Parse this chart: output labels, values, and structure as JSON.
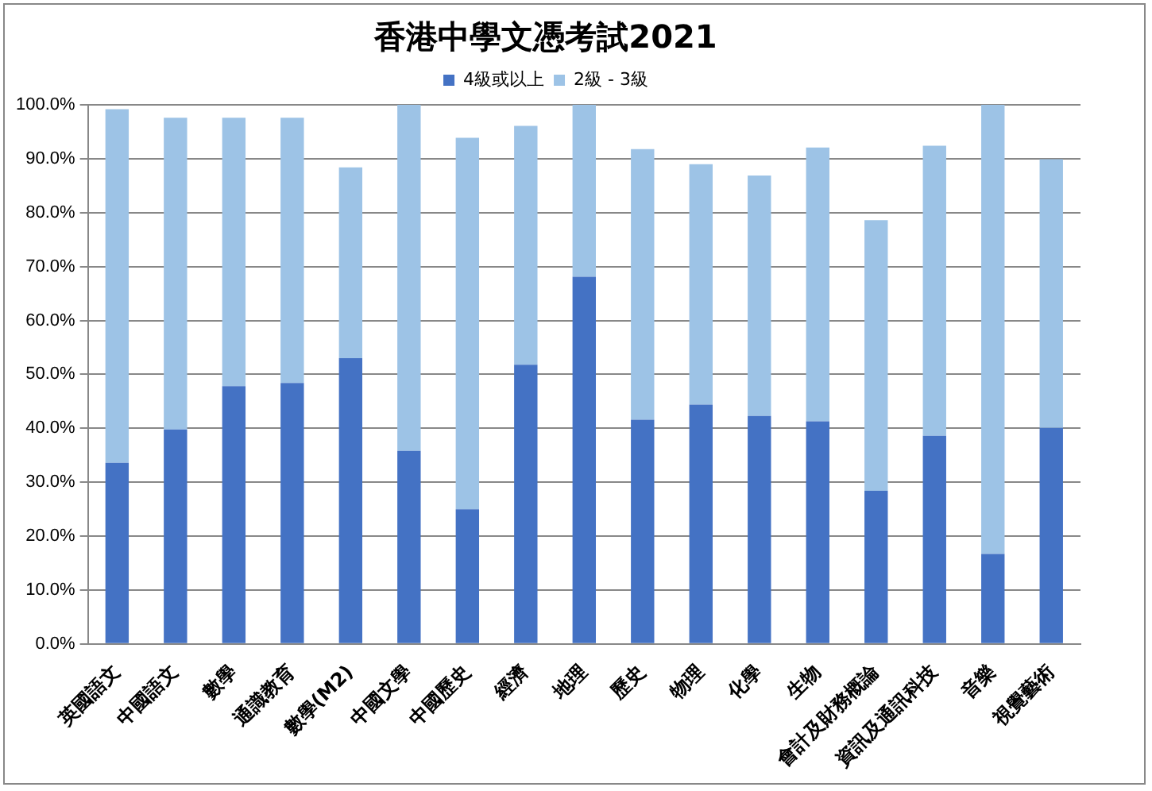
{
  "chart_data": {
    "type": "bar",
    "title": "香港中學文憑考試2021",
    "categories": [
      "英國語文",
      "中國語文",
      "數學",
      "通識教育",
      "數學(M2)",
      "中國文學",
      "中國歷史",
      "經濟",
      "地理",
      "歷史",
      "物理",
      "化學",
      "生物",
      "會計及財務概論",
      "資訊及通訊科技",
      "音樂",
      "視覺藝術"
    ],
    "series": [
      {
        "name": "4級或以上",
        "color": "#4472c4",
        "values": [
          33.6,
          39.8,
          47.8,
          48.4,
          53.0,
          35.8,
          25.0,
          51.8,
          68.1,
          41.6,
          44.4,
          42.3,
          41.3,
          28.4,
          38.6,
          16.7,
          40.1
        ]
      },
      {
        "name": "2級 - 3級",
        "color": "#9dc3e6",
        "values": [
          65.6,
          57.8,
          49.8,
          49.2,
          35.4,
          64.2,
          68.9,
          44.3,
          31.9,
          50.2,
          44.6,
          44.6,
          50.8,
          50.2,
          53.8,
          83.3,
          49.8
        ]
      }
    ],
    "stacked": true,
    "ylim": [
      0,
      100
    ],
    "yticks": [
      {
        "value": 0,
        "label": "0.0%"
      },
      {
        "value": 10,
        "label": "10.0%"
      },
      {
        "value": 20,
        "label": "20.0%"
      },
      {
        "value": 30,
        "label": "30.0%"
      },
      {
        "value": 40,
        "label": "40.0%"
      },
      {
        "value": 50,
        "label": "50.0%"
      },
      {
        "value": 60,
        "label": "60.0%"
      },
      {
        "value": 70,
        "label": "70.0%"
      },
      {
        "value": 80,
        "label": "80.0%"
      },
      {
        "value": 90,
        "label": "90.0%"
      },
      {
        "value": 100,
        "label": "100.0%"
      }
    ],
    "grid": "y",
    "legend": "top"
  }
}
